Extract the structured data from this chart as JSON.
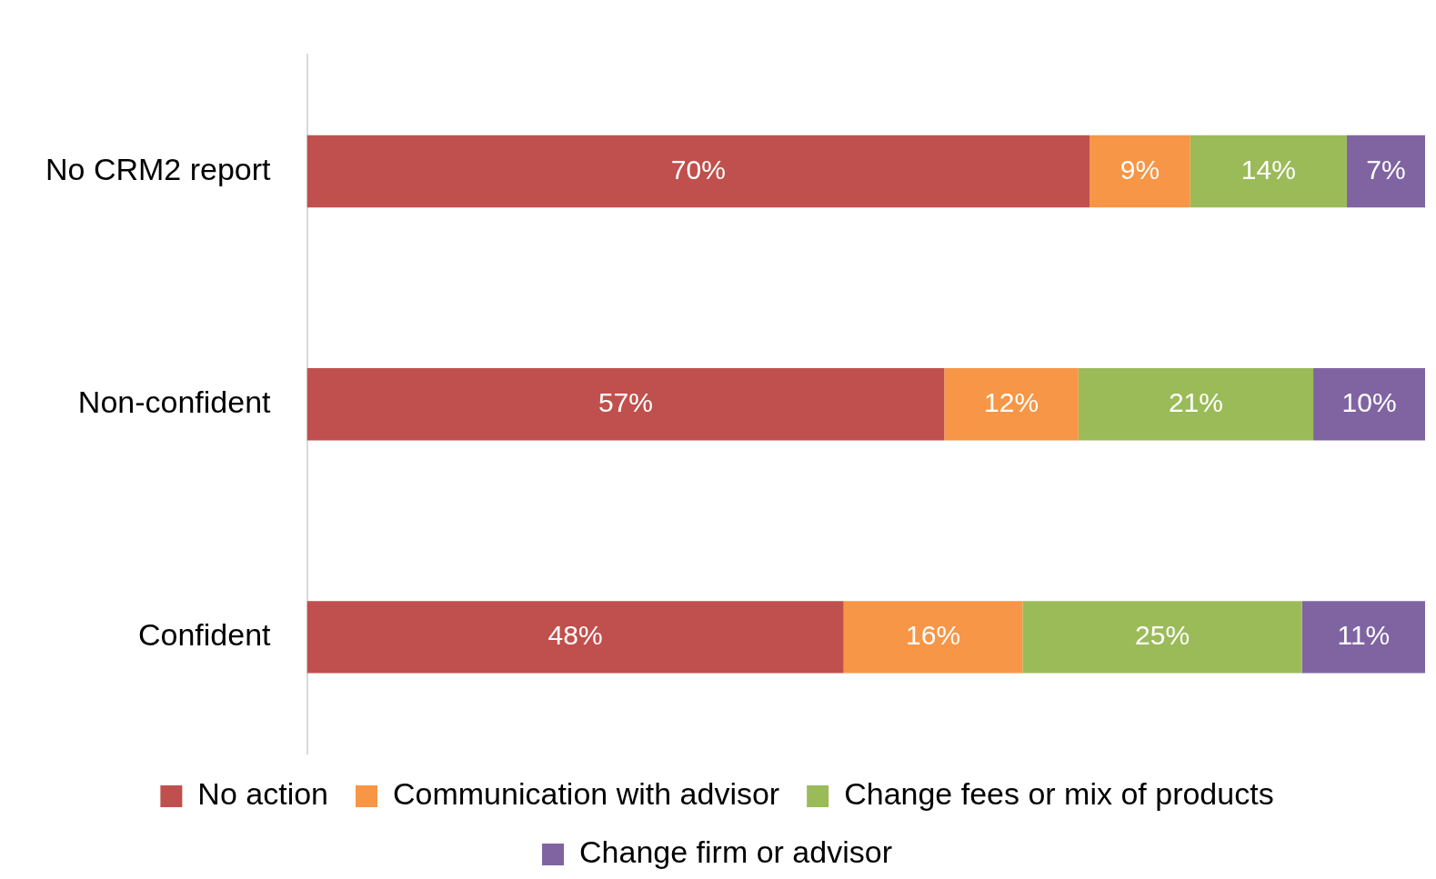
{
  "chart_data": {
    "type": "bar",
    "orientation": "horizontal",
    "stacked": true,
    "categories": [
      "No CRM2 report",
      "Non-confident",
      "Confident"
    ],
    "series": [
      {
        "name": "No action",
        "color": "#c0504d",
        "values": [
          70,
          57,
          48
        ],
        "value_labels": [
          "70%",
          "57%",
          "48%"
        ]
      },
      {
        "name": "Communication with advisor",
        "color": "#f79646",
        "values": [
          9,
          12,
          16
        ],
        "value_labels": [
          "9%",
          "12%",
          "16%"
        ]
      },
      {
        "name": "Change fees or mix of products",
        "color": "#9bbb59",
        "values": [
          14,
          21,
          25
        ],
        "value_labels": [
          "14%",
          "21%",
          "25%"
        ]
      },
      {
        "name": "Change firm or advisor",
        "color": "#8064a2",
        "values": [
          7,
          10,
          11
        ],
        "value_labels": [
          "7%",
          "10%",
          "11%"
        ]
      }
    ],
    "tick_labels": "y",
    "grid": false,
    "legend": "bottom"
  }
}
